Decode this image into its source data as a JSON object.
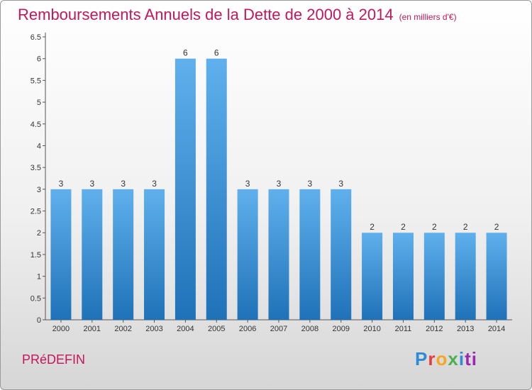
{
  "title": "Remboursements Annuels de la Dette de 2000 à 2014",
  "unit_label": "(en milliers d'€)",
  "commune": "PRéDEFIN",
  "brand": [
    "P",
    "r",
    "o",
    "x",
    "i",
    "ti"
  ],
  "colors": {
    "title": "#c2185b",
    "bar_top": "#5fb0ec",
    "bar_bottom": "#1f72b8"
  },
  "chart_data": {
    "type": "bar",
    "title": "Remboursements Annuels de la Dette de 2000 à 2014",
    "subtitle": "(en milliers d'€)",
    "xlabel": "",
    "ylabel": "",
    "categories": [
      "2000",
      "2001",
      "2002",
      "2003",
      "2004",
      "2005",
      "2006",
      "2007",
      "2008",
      "2009",
      "2010",
      "2011",
      "2012",
      "2013",
      "2014"
    ],
    "values": [
      3,
      3,
      3,
      3,
      6,
      6,
      3,
      3,
      3,
      3,
      2,
      2,
      2,
      2,
      2
    ],
    "ylim": [
      0,
      6.5
    ],
    "yticks": [
      0,
      0.5,
      1,
      1.5,
      2,
      2.5,
      3,
      3.5,
      4,
      4.5,
      5,
      5.5,
      6,
      6.5
    ],
    "ytick_labels": [
      "0",
      "0.5",
      "1",
      "1.5",
      "2",
      "2.5",
      "3",
      "3.5",
      "4",
      "4.5",
      "5",
      "5.5",
      "6",
      "6.5"
    ],
    "grid": false,
    "legend": "none"
  }
}
